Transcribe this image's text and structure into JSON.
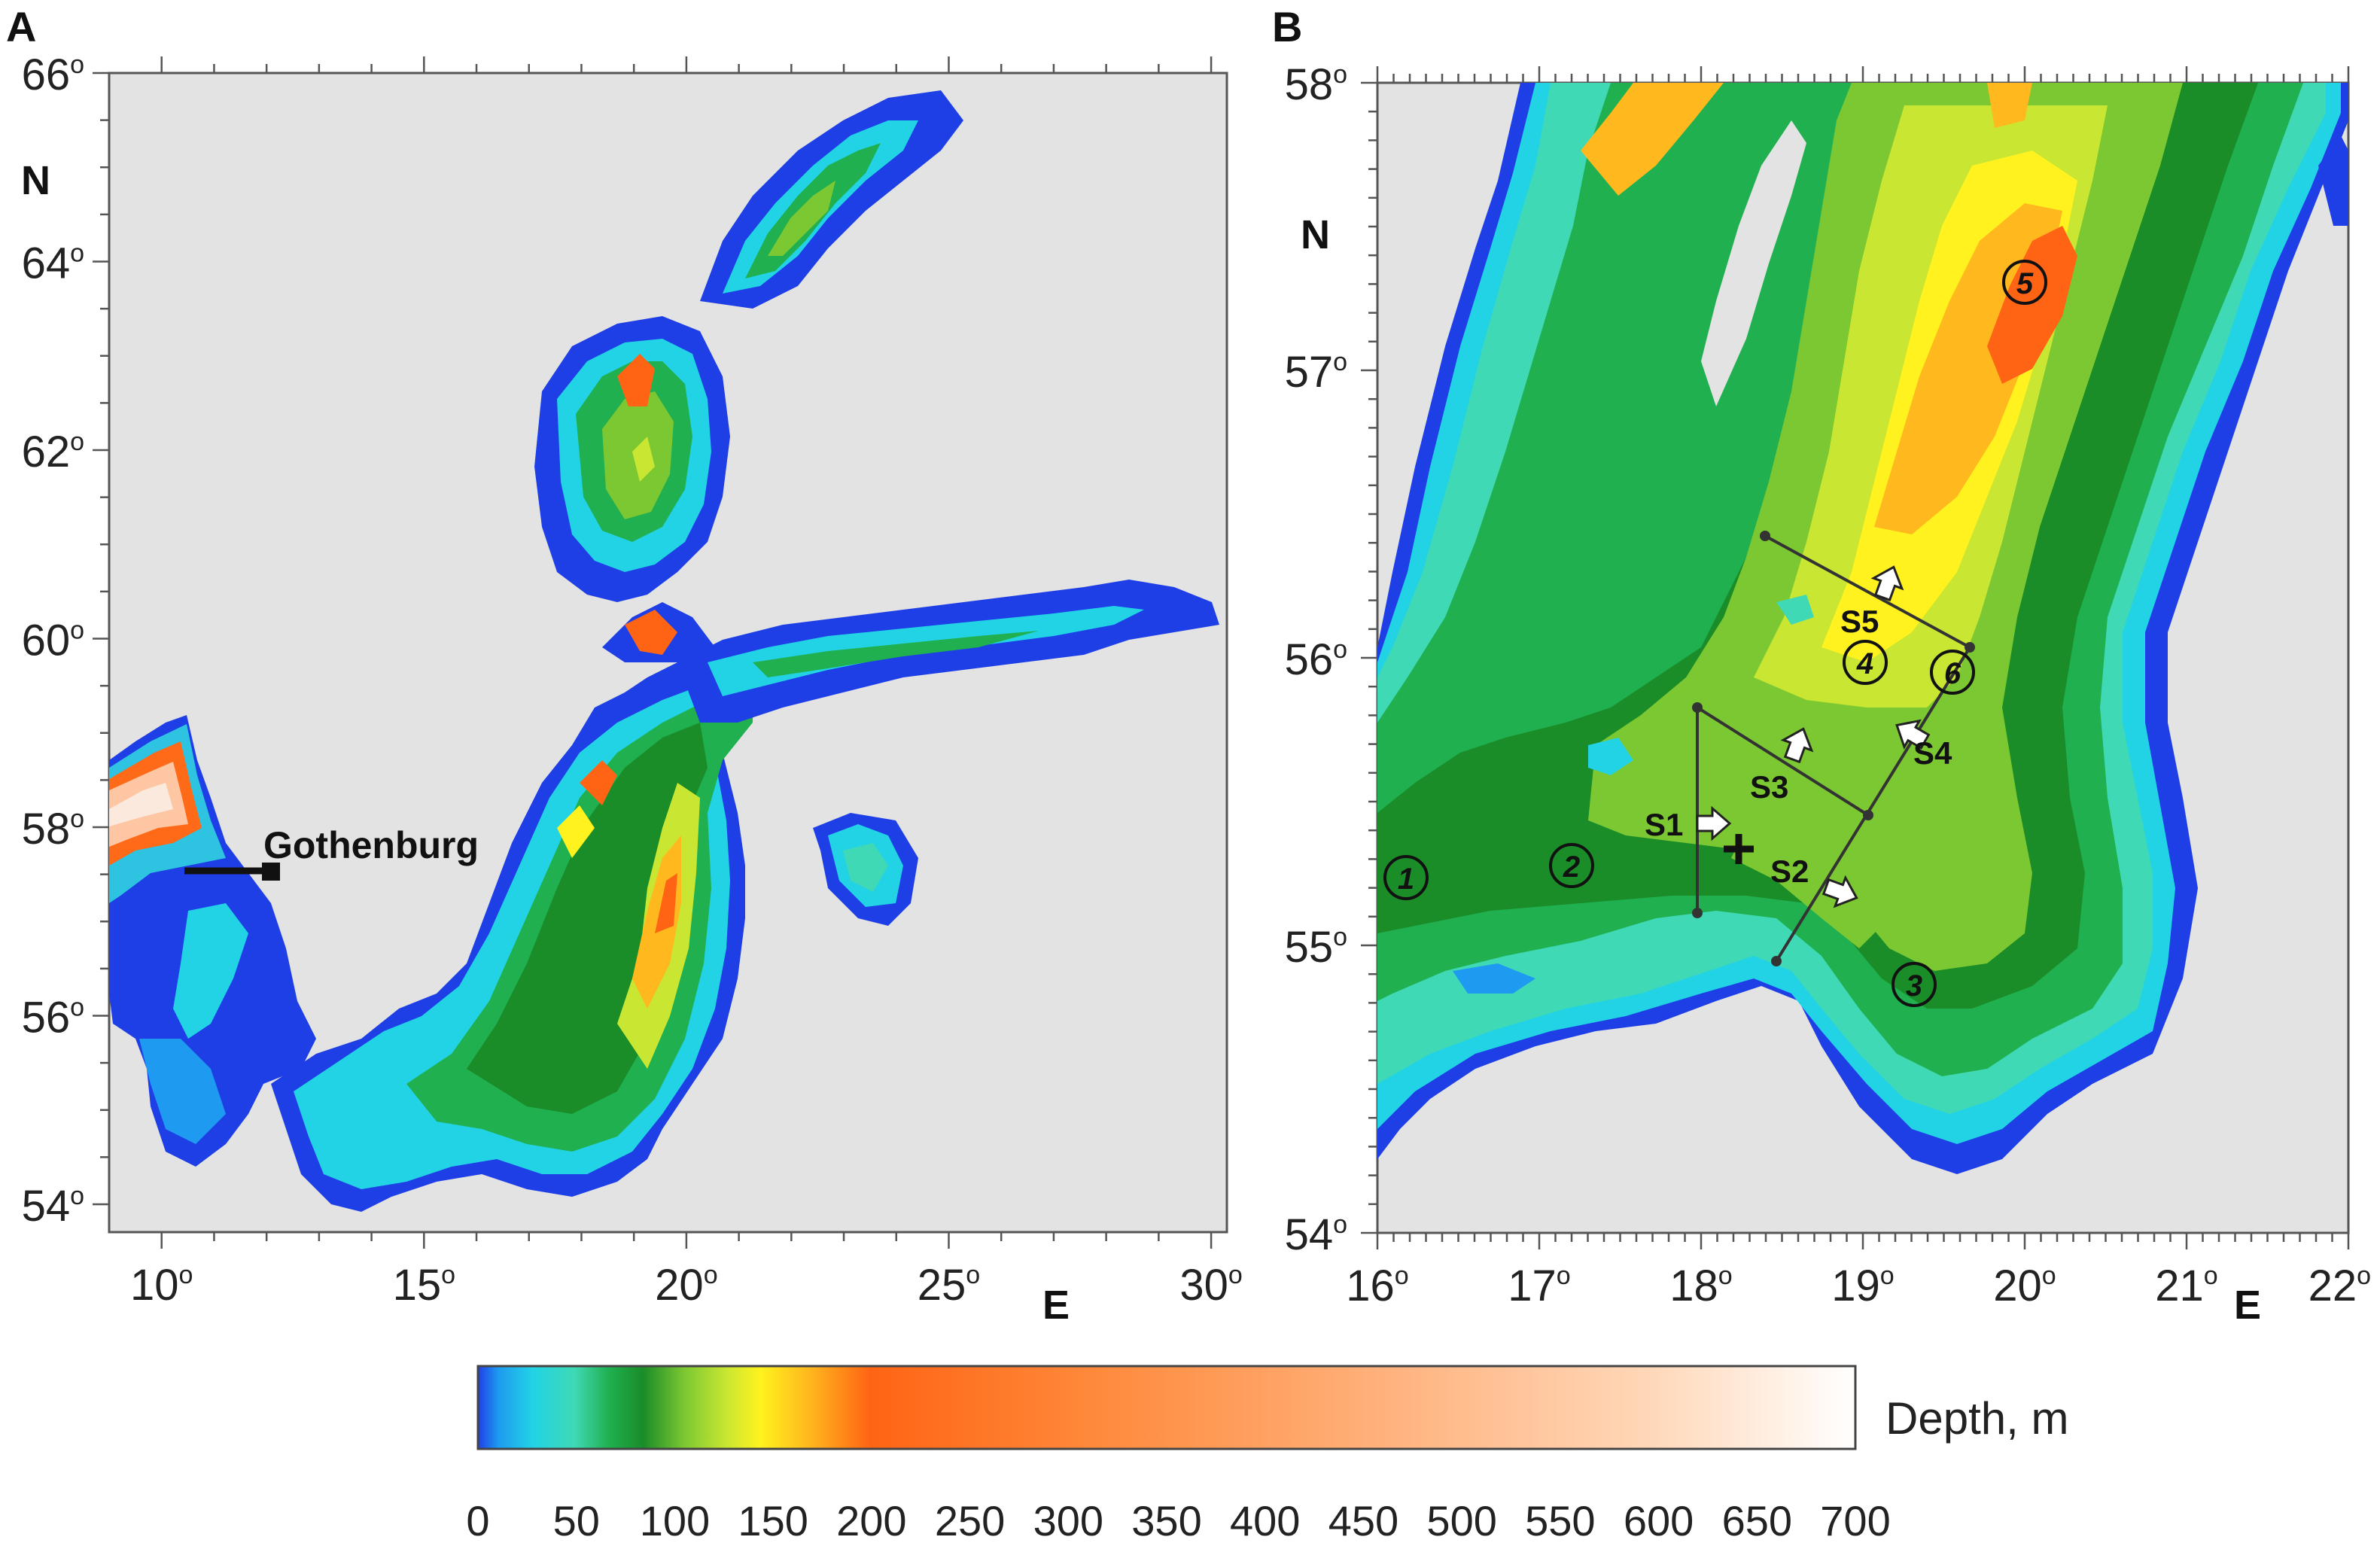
{
  "panel_a": {
    "letter": "A",
    "lat_ticks": [
      {
        "deg": "66",
        "sup": "o"
      },
      {
        "deg": "64",
        "sup": "o"
      },
      {
        "deg": "62",
        "sup": "o"
      },
      {
        "deg": "60",
        "sup": "o"
      },
      {
        "deg": "58",
        "sup": "o"
      },
      {
        "deg": "56",
        "sup": "o"
      },
      {
        "deg": "54",
        "sup": "o"
      }
    ],
    "lon_ticks": [
      {
        "deg": "10",
        "sup": "o"
      },
      {
        "deg": "15",
        "sup": "o"
      },
      {
        "deg": "20",
        "sup": "o"
      },
      {
        "deg": "25",
        "sup": "o"
      },
      {
        "deg": "30",
        "sup": "o"
      }
    ],
    "north_label": "N",
    "east_label": "E",
    "place": "Gothenburg"
  },
  "panel_b": {
    "letter": "B",
    "lat_ticks": [
      {
        "deg": "58",
        "sup": "o"
      },
      {
        "deg": "57",
        "sup": "o"
      },
      {
        "deg": "56",
        "sup": "o"
      },
      {
        "deg": "55",
        "sup": "o"
      },
      {
        "deg": "54",
        "sup": "o"
      }
    ],
    "lon_ticks": [
      {
        "deg": "16",
        "sup": "o"
      },
      {
        "deg": "17",
        "sup": "o"
      },
      {
        "deg": "18",
        "sup": "o"
      },
      {
        "deg": "19",
        "sup": "o"
      },
      {
        "deg": "20",
        "sup": "o"
      },
      {
        "deg": "21",
        "sup": "o"
      },
      {
        "deg": "22",
        "sup": "o"
      }
    ],
    "north_label": "N",
    "east_label": "E",
    "sections": [
      "S1",
      "S2",
      "S3",
      "S4",
      "S5"
    ],
    "stations": [
      "1",
      "2",
      "3",
      "4",
      "5",
      "6"
    ]
  },
  "colorbar": {
    "label": "Depth, m",
    "ticks": [
      "0",
      "50",
      "100",
      "150",
      "200",
      "250",
      "300",
      "350",
      "400",
      "450",
      "500",
      "550",
      "600",
      "650",
      "700"
    ],
    "colors": [
      "#1f3fe6",
      "#1e9bf0",
      "#22d3e6",
      "#3fd9b5",
      "#20b050",
      "#1a8c28",
      "#7cc832",
      "#c8e632",
      "#fff21e",
      "#ffb81e",
      "#ff6414",
      "#ff8a3c",
      "#ffb07a",
      "#ffd7b8",
      "#ffffff"
    ]
  }
}
